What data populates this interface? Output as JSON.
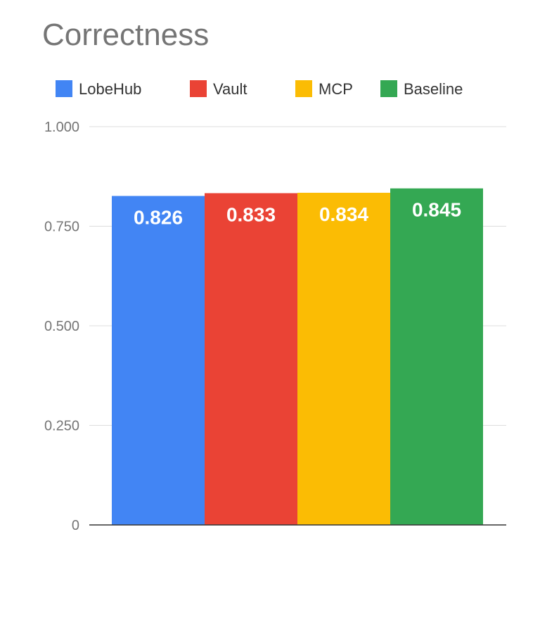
{
  "chart_data": {
    "type": "bar",
    "title": "Correctness",
    "xlabel": "",
    "ylabel": "",
    "ylim": [
      0,
      1
    ],
    "yticks": [
      {
        "value": 0,
        "label": "0"
      },
      {
        "value": 0.25,
        "label": "0.250"
      },
      {
        "value": 0.5,
        "label": "0.500"
      },
      {
        "value": 0.75,
        "label": "0.750"
      },
      {
        "value": 1,
        "label": "1.000"
      }
    ],
    "grid": true,
    "legend_position": "top",
    "series": [
      {
        "name": "LobeHub",
        "value": 0.826,
        "label": "0.826",
        "color": "#4285F4"
      },
      {
        "name": "Vault",
        "value": 0.833,
        "label": "0.833",
        "color": "#EA4335"
      },
      {
        "name": "MCP",
        "value": 0.834,
        "label": "0.834",
        "color": "#FBBC04"
      },
      {
        "name": "Baseline",
        "value": 0.845,
        "label": "0.845",
        "color": "#34A853"
      }
    ]
  }
}
